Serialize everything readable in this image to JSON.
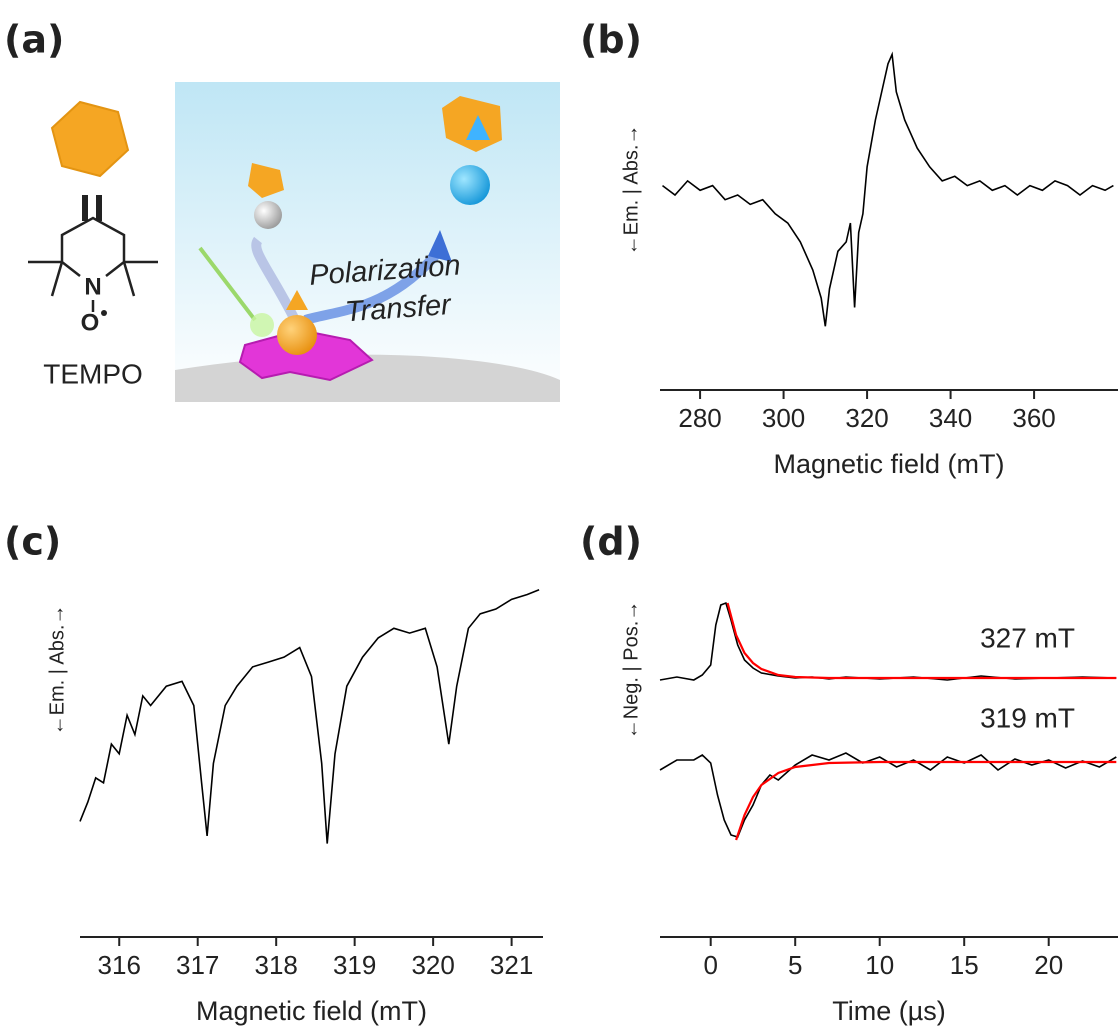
{
  "panel_labels": [
    "(a)",
    "(b)",
    "(c)",
    "(d)"
  ],
  "illustration": {
    "molecule_name": "TEMPO",
    "nitrogen": "N",
    "oxygen": "O",
    "caption_line1": "Polarization",
    "caption_line2": "Transfer"
  },
  "chart_data": [
    {
      "type": "line",
      "xlabel": "Magnetic field (mT)",
      "ylabel": "←Em. | Abs.→",
      "xlim": [
        270.4,
        380.1
      ],
      "xticks": [
        280,
        300,
        320,
        340,
        360
      ],
      "ylim": [
        -1.6,
        1.6
      ],
      "series": [
        {
          "color": "#000000",
          "x": [
            271,
            274,
            277,
            280,
            283,
            286,
            289,
            292,
            295,
            298,
            301,
            304,
            307,
            309,
            310,
            311,
            313,
            315,
            316,
            317,
            318,
            319,
            320,
            322,
            324,
            325,
            326,
            327,
            329,
            332,
            335,
            338,
            341,
            344,
            347,
            350,
            353,
            356,
            359,
            362,
            365,
            368,
            371,
            374,
            377,
            379
          ],
          "values": [
            0.1,
            0.0,
            0.15,
            0.05,
            0.1,
            -0.05,
            0.0,
            -0.1,
            -0.05,
            -0.2,
            -0.3,
            -0.5,
            -0.8,
            -1.1,
            -1.4,
            -1.0,
            -0.6,
            -0.5,
            -0.3,
            -1.2,
            -0.4,
            -0.2,
            0.3,
            0.8,
            1.2,
            1.4,
            1.5,
            1.1,
            0.8,
            0.5,
            0.3,
            0.15,
            0.2,
            0.1,
            0.15,
            0.05,
            0.1,
            0.0,
            0.1,
            0.05,
            0.15,
            0.1,
            0.0,
            0.1,
            0.05,
            0.1
          ]
        }
      ]
    },
    {
      "type": "line",
      "xlabel": "Magnetic field (mT)",
      "ylabel": "←Em. | Abs.→",
      "xlim": [
        315.5,
        321.4
      ],
      "xticks": [
        316,
        317,
        318,
        319,
        320,
        321
      ],
      "ylim": [
        -1.3,
        1.6
      ],
      "series": [
        {
          "color": "#000000",
          "x": [
            315.5,
            315.6,
            315.7,
            315.8,
            315.9,
            316.0,
            316.1,
            316.2,
            316.3,
            316.4,
            316.6,
            316.8,
            316.95,
            317.05,
            317.12,
            317.2,
            317.35,
            317.5,
            317.7,
            317.9,
            318.1,
            318.3,
            318.45,
            318.58,
            318.65,
            318.75,
            318.9,
            319.1,
            319.3,
            319.5,
            319.7,
            319.9,
            320.05,
            320.2,
            320.3,
            320.45,
            320.6,
            320.8,
            321.0,
            321.2,
            321.35
          ],
          "values": [
            -0.9,
            -0.7,
            -0.45,
            -0.5,
            -0.1,
            -0.2,
            0.2,
            0.0,
            0.4,
            0.3,
            0.5,
            0.55,
            0.3,
            -0.5,
            -1.05,
            -0.3,
            0.3,
            0.5,
            0.7,
            0.75,
            0.8,
            0.9,
            0.6,
            -0.3,
            -1.13,
            -0.2,
            0.5,
            0.8,
            1.0,
            1.1,
            1.05,
            1.1,
            0.7,
            -0.1,
            0.5,
            1.1,
            1.25,
            1.3,
            1.4,
            1.45,
            1.5
          ]
        }
      ]
    },
    {
      "type": "line",
      "xlabel": "Time (µs)",
      "ylabel": "←Neg. | Pos.→",
      "xlim": [
        -3,
        24.1
      ],
      "xticks": [
        0,
        5,
        10,
        15,
        20
      ],
      "ylim": [
        -0.9,
        1.8
      ],
      "series": [
        {
          "name": "327 mT",
          "color": "#000000",
          "x": [
            -3,
            -2,
            -1,
            -0.5,
            0,
            0.3,
            0.6,
            0.9,
            1.2,
            1.6,
            2,
            2.5,
            3,
            4,
            5,
            6,
            7,
            8,
            10,
            12,
            14,
            16,
            18,
            20,
            22,
            24
          ],
          "values": [
            0.85,
            0.88,
            0.85,
            0.9,
            1.0,
            1.4,
            1.6,
            1.62,
            1.45,
            1.2,
            1.05,
            0.97,
            0.92,
            0.89,
            0.87,
            0.88,
            0.86,
            0.88,
            0.86,
            0.88,
            0.85,
            0.89,
            0.86,
            0.87,
            0.88,
            0.87
          ]
        },
        {
          "color": "#ff0000",
          "x": [
            1.0,
            1.5,
            2,
            2.5,
            3,
            4,
            5,
            7,
            10,
            15,
            20,
            24
          ],
          "values": [
            1.62,
            1.3,
            1.12,
            1.02,
            0.96,
            0.9,
            0.88,
            0.87,
            0.87,
            0.87,
            0.87,
            0.87
          ]
        },
        {
          "name": "319 mT",
          "color": "#000000",
          "x": [
            -3,
            -2,
            -1,
            -0.5,
            0,
            0.4,
            0.8,
            1.2,
            1.6,
            2,
            2.5,
            3,
            3.5,
            4,
            5,
            6,
            7,
            8,
            9,
            10,
            11,
            12,
            13,
            14,
            15,
            16,
            17,
            18,
            19,
            20,
            21,
            22,
            23,
            24
          ],
          "values": [
            -0.05,
            0.05,
            0.05,
            0.1,
            0.02,
            -0.3,
            -0.55,
            -0.7,
            -0.72,
            -0.55,
            -0.4,
            -0.2,
            -0.1,
            -0.15,
            0.0,
            0.1,
            0.05,
            0.12,
            0.02,
            0.08,
            -0.02,
            0.05,
            -0.05,
            0.08,
            0.02,
            0.1,
            -0.05,
            0.06,
            0.0,
            0.05,
            -0.03,
            0.04,
            -0.02,
            0.08
          ]
        },
        {
          "color": "#ff0000",
          "x": [
            1.5,
            2,
            2.5,
            3,
            4,
            5,
            7,
            10,
            15,
            20,
            24
          ],
          "values": [
            -0.75,
            -0.5,
            -0.32,
            -0.2,
            -0.08,
            -0.02,
            0.02,
            0.03,
            0.03,
            0.03,
            0.03
          ]
        }
      ]
    }
  ]
}
